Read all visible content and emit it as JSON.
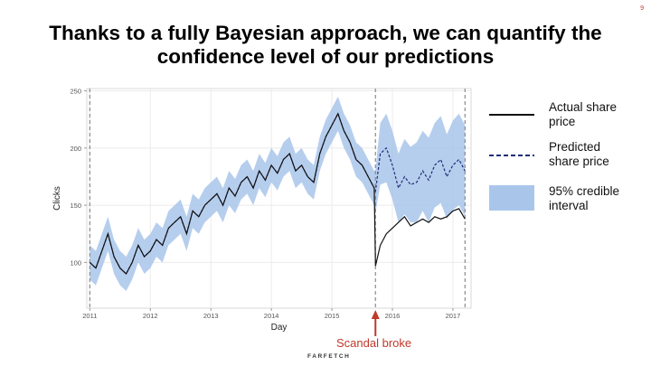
{
  "page_number": "9",
  "title": "Thanks to a fully Bayesian approach, we can quantify the confidence level of our predictions",
  "annotation": "Scandal broke",
  "footer_logo": "FARFETCH",
  "legend": [
    {
      "label": "Actual share price",
      "style": "solid-line"
    },
    {
      "label": "Predicted share price",
      "style": "dashed-line"
    },
    {
      "label": "95% credible interval",
      "style": "band"
    }
  ],
  "colors": {
    "actual": "#111111",
    "predicted": "#1f2d78",
    "interval": "#a9c6ea",
    "vline": "#8c8c8c",
    "annotation": "#c0392b",
    "axis_text": "#555555"
  },
  "chart_data": {
    "type": "line",
    "xlabel": "Day",
    "ylabel": "Clicks",
    "xlim": [
      2010.95,
      2017.3
    ],
    "ylim": [
      60,
      252
    ],
    "x_ticks": [
      "2011",
      "2012",
      "2013",
      "2014",
      "2015",
      "2016",
      "2017"
    ],
    "y_ticks": [
      100,
      150,
      200,
      250
    ],
    "grid": true,
    "vertical_lines": [
      2011.0,
      2015.72,
      2017.2
    ],
    "annotation_x": 2015.72,
    "x": [
      2011.0,
      2011.1,
      2011.2,
      2011.3,
      2011.4,
      2011.5,
      2011.6,
      2011.7,
      2011.8,
      2011.9,
      2012.0,
      2012.1,
      2012.2,
      2012.3,
      2012.4,
      2012.5,
      2012.6,
      2012.7,
      2012.8,
      2012.9,
      2013.0,
      2013.1,
      2013.2,
      2013.3,
      2013.4,
      2013.5,
      2013.6,
      2013.7,
      2013.8,
      2013.9,
      2014.0,
      2014.1,
      2014.2,
      2014.3,
      2014.4,
      2014.5,
      2014.6,
      2014.7,
      2014.8,
      2014.9,
      2015.0,
      2015.1,
      2015.2,
      2015.3,
      2015.4,
      2015.5,
      2015.6,
      2015.7,
      2015.72,
      2015.8,
      2015.9,
      2016.0,
      2016.1,
      2016.2,
      2016.3,
      2016.4,
      2016.5,
      2016.6,
      2016.7,
      2016.8,
      2016.9,
      2017.0,
      2017.1,
      2017.2
    ],
    "series": [
      {
        "name": "Actual share price",
        "values": [
          100,
          95,
          110,
          125,
          105,
          95,
          90,
          100,
          115,
          105,
          110,
          120,
          115,
          130,
          135,
          140,
          125,
          145,
          140,
          150,
          155,
          160,
          150,
          165,
          158,
          170,
          175,
          165,
          180,
          172,
          185,
          178,
          190,
          195,
          180,
          185,
          175,
          170,
          195,
          210,
          220,
          230,
          215,
          205,
          190,
          185,
          175,
          165,
          97,
          115,
          125,
          130,
          135,
          140,
          132,
          135,
          138,
          135,
          140,
          138,
          140,
          145,
          147,
          138
        ]
      },
      {
        "name": "Predicted share price",
        "values": [
          100,
          95,
          110,
          125,
          105,
          95,
          90,
          100,
          115,
          105,
          110,
          120,
          115,
          130,
          135,
          140,
          125,
          145,
          140,
          150,
          155,
          160,
          150,
          165,
          158,
          170,
          175,
          165,
          180,
          172,
          185,
          178,
          190,
          195,
          180,
          185,
          175,
          170,
          195,
          210,
          220,
          230,
          215,
          205,
          190,
          185,
          175,
          165,
          162,
          195,
          200,
          185,
          165,
          175,
          168,
          170,
          180,
          172,
          185,
          190,
          175,
          185,
          190,
          180
        ]
      },
      {
        "name": "95% credible interval lower",
        "values": [
          85,
          80,
          95,
          110,
          90,
          80,
          75,
          85,
          100,
          90,
          95,
          105,
          100,
          115,
          120,
          125,
          110,
          130,
          125,
          135,
          140,
          145,
          135,
          150,
          143,
          155,
          160,
          150,
          165,
          157,
          170,
          163,
          175,
          180,
          165,
          170,
          160,
          155,
          180,
          195,
          205,
          215,
          200,
          190,
          175,
          170,
          160,
          150,
          143,
          168,
          170,
          155,
          135,
          142,
          135,
          135,
          145,
          135,
          148,
          152,
          138,
          146,
          150,
          140
        ]
      },
      {
        "name": "95% credible interval upper",
        "values": [
          115,
          110,
          125,
          140,
          120,
          110,
          105,
          115,
          130,
          120,
          125,
          135,
          130,
          145,
          150,
          155,
          140,
          160,
          155,
          165,
          170,
          175,
          165,
          180,
          173,
          185,
          190,
          180,
          195,
          187,
          200,
          193,
          205,
          210,
          195,
          200,
          190,
          185,
          210,
          225,
          235,
          245,
          230,
          220,
          205,
          200,
          190,
          180,
          181,
          222,
          230,
          215,
          195,
          208,
          201,
          205,
          215,
          209,
          222,
          228,
          212,
          224,
          230,
          220
        ]
      }
    ]
  }
}
